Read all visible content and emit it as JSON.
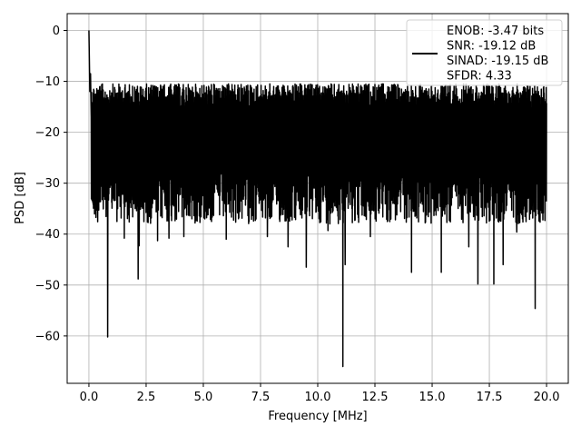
{
  "chart_data": {
    "type": "line",
    "title": "",
    "xlabel": "Frequency [MHz]",
    "ylabel": "PSD [dB]",
    "xlim": [
      -0.95,
      20.95
    ],
    "ylim": [
      -69.3,
      3.3
    ],
    "xticks": [
      0.0,
      2.5,
      5.0,
      7.5,
      10.0,
      12.5,
      15.0,
      17.5,
      20.0
    ],
    "xtick_labels": [
      "0.0",
      "2.5",
      "5.0",
      "7.5",
      "10.0",
      "12.5",
      "15.0",
      "17.5",
      "20.0"
    ],
    "yticks": [
      0,
      -10,
      -20,
      -30,
      -40,
      -50,
      -60
    ],
    "ytick_labels": [
      "0",
      "−10",
      "−20",
      "−30",
      "−40",
      "−50",
      "−60"
    ],
    "grid": true,
    "legend_position": "top-right",
    "series": [
      {
        "name": "ENOB: -3.47 bits\nSNR: -19.12 dB\nSINAD: -19.15 dB\nSFDR: 4.33",
        "color": "#000000",
        "description": "noisy PSD, mostly between -10 and -35 dB",
        "start_points": [
          [
            0.0,
            0.0
          ],
          [
            0.02,
            -6.0
          ],
          [
            0.04,
            -12.0
          ],
          [
            0.07,
            -8.5
          ],
          [
            0.1,
            -17.0
          ]
        ],
        "noise_upper_range": [
          -10.5,
          -16.0
        ],
        "noise_lower_range": [
          -28.0,
          -38.0
        ],
        "dips": [
          {
            "x": 0.82,
            "y": -60.2
          },
          {
            "x": 1.55,
            "y": -40.8
          },
          {
            "x": 2.15,
            "y": -48.8
          },
          {
            "x": 2.2,
            "y": -42.3
          },
          {
            "x": 3.0,
            "y": -41.3
          },
          {
            "x": 3.5,
            "y": -40.8
          },
          {
            "x": 4.15,
            "y": -40.5
          },
          {
            "x": 6.0,
            "y": -41.0
          },
          {
            "x": 7.8,
            "y": -40.5
          },
          {
            "x": 8.7,
            "y": -42.5
          },
          {
            "x": 9.5,
            "y": -46.5
          },
          {
            "x": 10.45,
            "y": -39.3
          },
          {
            "x": 11.1,
            "y": -66.0
          },
          {
            "x": 11.2,
            "y": -46.0
          },
          {
            "x": 12.3,
            "y": -40.5
          },
          {
            "x": 14.1,
            "y": -47.5
          },
          {
            "x": 15.4,
            "y": -47.5
          },
          {
            "x": 16.6,
            "y": -42.5
          },
          {
            "x": 17.0,
            "y": -49.8
          },
          {
            "x": 17.7,
            "y": -49.8
          },
          {
            "x": 18.1,
            "y": -46.0
          },
          {
            "x": 18.7,
            "y": -39.6
          },
          {
            "x": 19.5,
            "y": -54.6
          }
        ]
      }
    ]
  }
}
